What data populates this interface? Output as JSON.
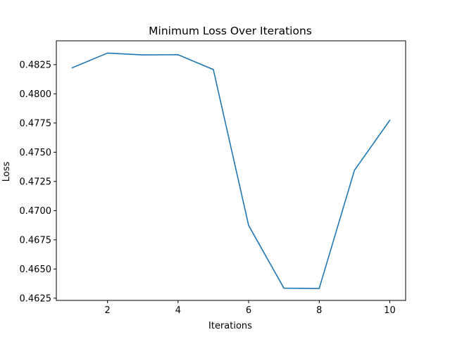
{
  "chart_data": {
    "type": "line",
    "title": "Minimum Loss Over Iterations",
    "xlabel": "Iterations",
    "ylabel": "Loss",
    "x": [
      1,
      2,
      3,
      4,
      5,
      6,
      7,
      8,
      9,
      10
    ],
    "series": [
      {
        "values": [
          0.48223,
          0.48349,
          0.48333,
          0.48335,
          0.48208,
          0.46873,
          0.46336,
          0.46333,
          0.47346,
          0.47773
        ],
        "color": "#1f77b4"
      }
    ],
    "xlim": [
      0.55,
      10.45
    ],
    "ylim": [
      0.46231,
      0.48454
    ],
    "xticks": [
      2,
      4,
      6,
      8,
      10
    ],
    "xtick_labels": [
      "2",
      "4",
      "6",
      "8",
      "10"
    ],
    "yticks": [
      0.4625,
      0.465,
      0.4675,
      0.47,
      0.4725,
      0.475,
      0.4775,
      0.48,
      0.4825
    ],
    "ytick_labels": [
      "0.4625",
      "0.4650",
      "0.4675",
      "0.4700",
      "0.4725",
      "0.4750",
      "0.4775",
      "0.4800",
      "0.4825"
    ],
    "grid": false,
    "legend": "none"
  }
}
